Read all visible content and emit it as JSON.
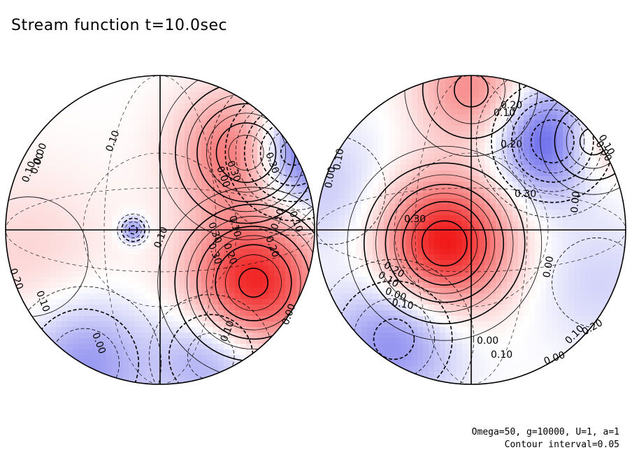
{
  "chart_data": {
    "type": "heatmap",
    "title": "Stream function t=10.0sec",
    "projection": "orthographic, two hemispheres",
    "parameters": "Omega=50, g=10000, U=1, a=1",
    "contour_interval_text": "Contour interval=0.05",
    "contour_interval": 0.05,
    "colormap": {
      "negative": "#1010e0",
      "zero": "#ffffff",
      "positive": "#f01010"
    },
    "value_range": [
      -0.45,
      0.45
    ],
    "hemispheres": [
      {
        "name": "left",
        "extrema": [
          {
            "sign": 1,
            "value": 0.38,
            "lon": 40,
            "lat": 30,
            "width": 0.28
          },
          {
            "sign": 1,
            "value": 0.42,
            "lon": 40,
            "lat": -20,
            "width": 0.3
          },
          {
            "sign": -1,
            "value": 0.42,
            "lon": 85,
            "lat": 30,
            "width": 0.26
          },
          {
            "sign": -1,
            "value": 0.18,
            "lon": 35,
            "lat": -55,
            "width": 0.25
          },
          {
            "sign": 1,
            "value": 0.08,
            "lon": -60,
            "lat": -10,
            "width": 0.4
          },
          {
            "sign": -1,
            "value": 0.2,
            "lon": -80,
            "lat": -60,
            "width": 0.3
          },
          {
            "sign": -1,
            "value": 0.22,
            "lon": -10,
            "lat": 0,
            "width": 0.06
          }
        ],
        "labels": [
          "0.10",
          "0.00",
          "0.10",
          "0.30",
          "0.00",
          "0.30",
          "0.10",
          "0.30",
          "0.20",
          "0.20",
          "0.10",
          "0.20",
          "0.10",
          "0.00",
          "0.10",
          "0.00",
          "0.00",
          "0.10",
          "0.30",
          "0.10"
        ]
      },
      {
        "name": "right",
        "extrema": [
          {
            "sign": 1,
            "value": 0.45,
            "lon": -10,
            "lat": -5,
            "width": 0.3
          },
          {
            "sign": -1,
            "value": 0.35,
            "lon": 40,
            "lat": 35,
            "width": 0.25
          },
          {
            "sign": 1,
            "value": 0.22,
            "lon": 0,
            "lat": 65,
            "width": 0.25
          },
          {
            "sign": 1,
            "value": 0.22,
            "lon": 75,
            "lat": 35,
            "width": 0.2
          },
          {
            "sign": -1,
            "value": 0.22,
            "lon": -45,
            "lat": -45,
            "width": 0.3
          },
          {
            "sign": -1,
            "value": 0.1,
            "lon": -70,
            "lat": 15,
            "width": 0.3
          },
          {
            "sign": -1,
            "value": 0.08,
            "lon": 60,
            "lat": -20,
            "width": 0.3
          }
        ],
        "labels": [
          "0.20",
          "0.10",
          "0.20",
          "0.30",
          "0.00",
          "0.10",
          "0.00",
          "0.30",
          "0.20",
          "0.10",
          "0.00",
          "0.10",
          "0.00",
          "0.10",
          "0.20",
          "0.00",
          "0.10",
          "0.10",
          "0.00",
          "0.00"
        ]
      }
    ]
  }
}
